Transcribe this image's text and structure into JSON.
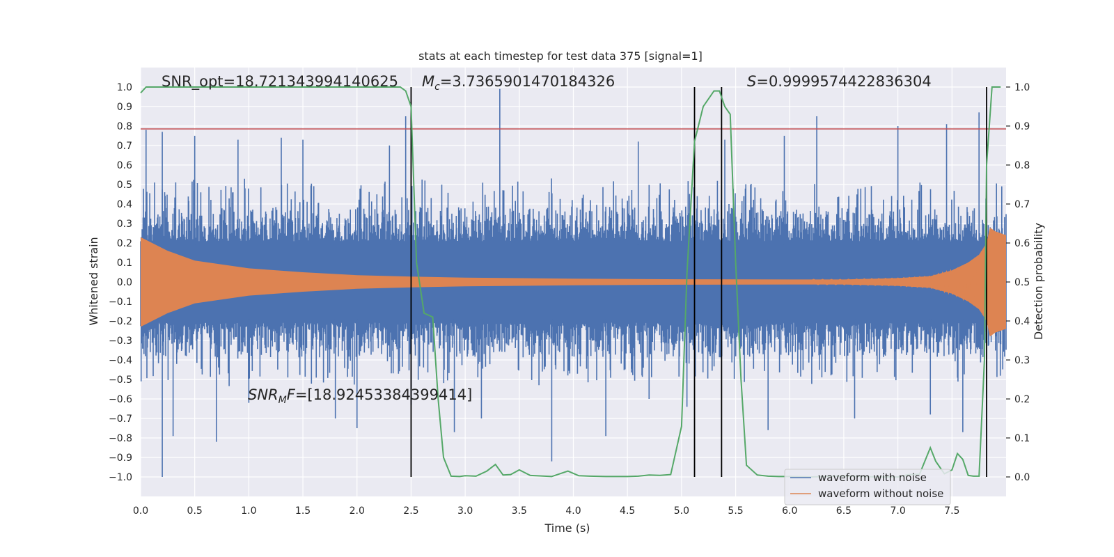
{
  "chart_data": {
    "type": "line",
    "title": "stats at each timestep for test data 375 [signal=1]",
    "xlabel": "Time (s)",
    "ylabel": "Whitened strain",
    "y2label": "Detection probability",
    "xlim": [
      0.0,
      8.0
    ],
    "ylim": [
      -1.1,
      1.1
    ],
    "y2lim": [
      -0.05,
      1.05
    ],
    "xticks": [
      "0.0",
      "0.5",
      "1.0",
      "1.5",
      "2.0",
      "2.5",
      "3.0",
      "3.5",
      "4.0",
      "4.5",
      "5.0",
      "5.5",
      "6.0",
      "6.5",
      "7.0",
      "7.5"
    ],
    "xtick_values": [
      0,
      0.5,
      1,
      1.5,
      2,
      2.5,
      3,
      3.5,
      4,
      4.5,
      5,
      5.5,
      6,
      6.5,
      7,
      7.5
    ],
    "yticks": [
      "1.0",
      "0.9",
      "0.8",
      "0.7",
      "0.6",
      "0.5",
      "0.4",
      "0.3",
      "0.2",
      "0.1",
      "0.0",
      "−0.1",
      "−0.2",
      "−0.3",
      "−0.4",
      "−0.5",
      "−0.6",
      "−0.7",
      "−0.8",
      "−0.9",
      "−1.0"
    ],
    "ytick_values": [
      1,
      0.9,
      0.8,
      0.7,
      0.6,
      0.5,
      0.4,
      0.3,
      0.2,
      0.1,
      0,
      -0.1,
      -0.2,
      -0.3,
      -0.4,
      -0.5,
      -0.6,
      -0.7,
      -0.8,
      -0.9,
      -1.0
    ],
    "y2ticks": [
      "1.0",
      "0.9",
      "0.8",
      "0.7",
      "0.6",
      "0.5",
      "0.4",
      "0.3",
      "0.2",
      "0.1",
      "0.0"
    ],
    "y2tick_values": [
      1,
      0.9,
      0.8,
      0.7,
      0.6,
      0.5,
      0.4,
      0.3,
      0.2,
      0.1,
      0
    ],
    "grid": true,
    "legend_position": "bottom-right",
    "series": [
      {
        "name": "waveform with noise",
        "color": "#4c72b0",
        "noise_band_envelope": {
          "x": [
            0.0,
            8.0
          ],
          "y": [
            0.38,
            0.38
          ]
        },
        "peaks": {
          "x": [
            0.05,
            0.2,
            0.2,
            0.3,
            0.5,
            0.7,
            0.9,
            1.0,
            1.3,
            1.5,
            1.8,
            2.0,
            2.3,
            2.45,
            2.5,
            2.9,
            3.15,
            3.32,
            3.8,
            4.3,
            4.6,
            4.7,
            5.05,
            5.4,
            5.8,
            5.95,
            6.25,
            6.6,
            7.0,
            7.3,
            7.45,
            7.6,
            7.75
          ],
          "y": [
            0.78,
            -1.0,
            0.77,
            -0.79,
            0.75,
            -0.82,
            0.73,
            -0.62,
            0.74,
            0.73,
            -0.7,
            -0.75,
            0.7,
            0.85,
            -0.63,
            -0.77,
            -0.7,
            0.99,
            -0.92,
            -0.79,
            0.72,
            -0.6,
            -0.64,
            0.73,
            -0.76,
            0.75,
            0.85,
            -0.7,
            0.8,
            -0.68,
            0.81,
            -0.77,
            0.87
          ]
        }
      },
      {
        "name": "waveform without noise",
        "color": "#dd8452",
        "envelope": {
          "x": [
            0.0,
            0.25,
            0.5,
            1.0,
            1.5,
            2.0,
            2.5,
            3.0,
            4.0,
            5.0,
            6.0,
            6.5,
            7.0,
            7.3,
            7.5,
            7.65,
            7.75,
            7.82,
            7.85,
            7.9,
            8.0
          ],
          "y": [
            0.23,
            0.16,
            0.11,
            0.07,
            0.05,
            0.035,
            0.028,
            0.022,
            0.017,
            0.014,
            0.013,
            0.013,
            0.02,
            0.03,
            0.06,
            0.1,
            0.14,
            0.2,
            0.28,
            0.26,
            0.24
          ]
        }
      },
      {
        "name": "detection probability",
        "color": "#55a868",
        "axis": "right",
        "x": [
          0.0,
          0.05,
          0.1,
          2.4,
          2.45,
          2.5,
          2.55,
          2.62,
          2.7,
          2.75,
          2.8,
          2.87,
          2.95,
          3.0,
          3.1,
          3.2,
          3.28,
          3.35,
          3.42,
          3.5,
          3.6,
          3.8,
          3.95,
          4.05,
          4.15,
          4.3,
          4.5,
          4.6,
          4.7,
          4.8,
          4.9,
          5.0,
          5.05,
          5.12,
          5.2,
          5.3,
          5.35,
          5.4,
          5.45,
          5.5,
          5.55,
          5.6,
          5.7,
          5.8,
          5.9,
          6.0,
          6.2,
          6.4,
          6.6,
          6.8,
          7.0,
          7.1,
          7.2,
          7.3,
          7.35,
          7.43,
          7.5,
          7.55,
          7.6,
          7.65,
          7.7,
          7.75,
          7.8,
          7.82,
          7.87,
          7.92,
          7.95
        ],
        "y": [
          0.985,
          1.0,
          1.0,
          1.0,
          0.99,
          0.95,
          0.55,
          0.42,
          0.41,
          0.2,
          0.05,
          0.002,
          0.001,
          0.003,
          0.002,
          0.015,
          0.032,
          0.005,
          0.006,
          0.018,
          0.004,
          0.001,
          0.015,
          0.003,
          0.002,
          0.001,
          0.001,
          0.002,
          0.005,
          0.004,
          0.006,
          0.13,
          0.52,
          0.86,
          0.95,
          0.99,
          0.99,
          0.95,
          0.93,
          0.55,
          0.25,
          0.03,
          0.005,
          0.002,
          0.001,
          0.001,
          0.0,
          0.002,
          0.002,
          0.0,
          0.0,
          0.006,
          0.007,
          0.075,
          0.04,
          0.008,
          0.018,
          0.06,
          0.045,
          0.004,
          0.002,
          0.002,
          0.3,
          0.8,
          1.0,
          1.0,
          1.0
        ]
      }
    ],
    "threshold_line": {
      "y": 0.785,
      "color": "#c44e52"
    },
    "vertical_markers": [
      2.5,
      5.12,
      5.37,
      7.82
    ],
    "annotations": {
      "snr_opt": "SNR_opt=18.721343994140625",
      "mc_sym": "M",
      "mc_sub": "c",
      "mc_val": "=3.7365901470184326",
      "s_sym": "S",
      "s_val": "=0.9999574422836304",
      "snr_mf_sym": "SNR",
      "snr_mf_sub": "M",
      "snr_mf_f": "F",
      "snr_mf_val": "=[18.92453384399414]"
    }
  }
}
